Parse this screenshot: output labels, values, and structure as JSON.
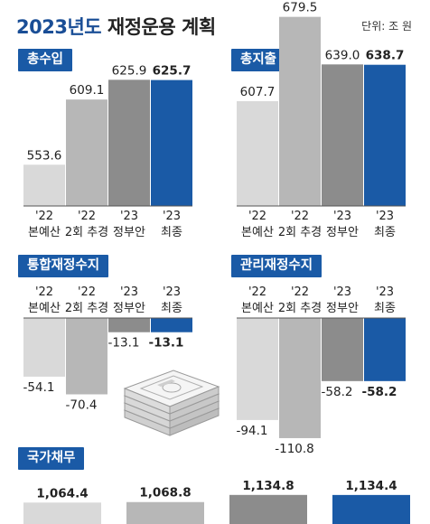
{
  "header": {
    "title_year": "2023년도",
    "title_rest": " 재정운용 계획",
    "unit": "단위: 조 원"
  },
  "colors": {
    "accent": "#1a5aa6",
    "bar_base": "#d9d9d9",
    "bar_supp": "#b7b7b7",
    "bar_gov": "#8c8c8c",
    "bar_final": "#1a5aa6"
  },
  "categories": [
    {
      "year": "'22",
      "name": "본예산"
    },
    {
      "year": "'22",
      "name": "2회 추경"
    },
    {
      "year": "'23",
      "name": "정부안"
    },
    {
      "year": "'23",
      "name": "최종"
    }
  ],
  "chart_data": [
    {
      "type": "bar",
      "title": "총수입",
      "categories": [
        "'22 본예산",
        "'22 2회 추경",
        "'23 정부안",
        "'23 최종"
      ],
      "values": [
        553.6,
        609.1,
        625.9,
        625.7
      ],
      "labels": [
        "553.6",
        "609.1",
        "625.9",
        "625.7"
      ]
    },
    {
      "type": "bar",
      "title": "총지출",
      "categories": [
        "'22 본예산",
        "'22 2회 추경",
        "'23 정부안",
        "'23 최종"
      ],
      "values": [
        607.7,
        679.5,
        639.0,
        638.7
      ],
      "labels": [
        "607.7",
        "679.5",
        "639.0",
        "638.7"
      ]
    },
    {
      "type": "bar",
      "title": "통합재정수지",
      "categories": [
        "'22 본예산",
        "'22 2회 추경",
        "'23 정부안",
        "'23 최종"
      ],
      "values": [
        -54.1,
        -70.4,
        -13.1,
        -13.1
      ],
      "labels": [
        "-54.1",
        "-70.4",
        "-13.1",
        "-13.1"
      ]
    },
    {
      "type": "bar",
      "title": "관리재정수지",
      "categories": [
        "'22 본예산",
        "'22 2회 추경",
        "'23 정부안",
        "'23 최종"
      ],
      "values": [
        -94.1,
        -110.8,
        -58.2,
        -58.2
      ],
      "labels": [
        "-94.1",
        "-110.8",
        "-58.2",
        "-58.2"
      ]
    },
    {
      "type": "bar",
      "title": "국가채무",
      "categories": [
        "'22 본예산",
        "'22 2회 추경",
        "'23 정부안",
        "'23 최종"
      ],
      "values": [
        1064.4,
        1068.8,
        1134.8,
        1134.4
      ],
      "labels": [
        "1,064.4",
        "1,068.8",
        "1,134.8",
        "1,134.4"
      ]
    }
  ]
}
